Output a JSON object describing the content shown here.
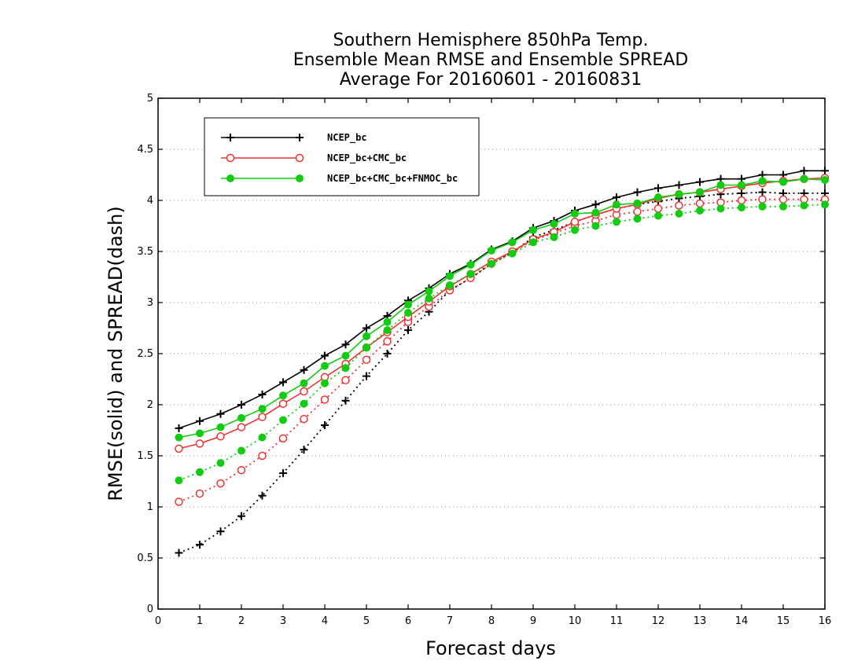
{
  "chart_data": {
    "type": "line",
    "title": [
      "Southern Hemisphere 850hPa Temp.",
      "Ensemble Mean RMSE and Ensemble SPREAD",
      "Average For 20160601 - 20160831"
    ],
    "xlabel": "Forecast days",
    "ylabel": "RMSE(solid) and SPREAD(dash)",
    "xlim": [
      0,
      16
    ],
    "ylim": [
      0,
      5
    ],
    "xticks": [
      0,
      1,
      2,
      3,
      4,
      5,
      6,
      7,
      8,
      9,
      10,
      11,
      12,
      13,
      14,
      15,
      16
    ],
    "yticks": [
      0,
      0.5,
      1,
      1.5,
      2,
      2.5,
      3,
      3.5,
      4,
      4.5,
      5
    ],
    "ytick_labels": [
      "0",
      "0.5",
      "1",
      "1.5",
      "2",
      "2.5",
      "3",
      "3.5",
      "4",
      "4.5",
      "5"
    ],
    "grid": "horizontal dotted",
    "legend_position": "top-left",
    "x": [
      0.5,
      1,
      1.5,
      2,
      2.5,
      3,
      3.5,
      4,
      4.5,
      5,
      5.5,
      6,
      6.5,
      7,
      7.5,
      8,
      8.5,
      9,
      9.5,
      10,
      10.5,
      11,
      11.5,
      12,
      12.5,
      13,
      13.5,
      14,
      14.5,
      15,
      15.5,
      16
    ],
    "series": [
      {
        "name": "NCEP_bc",
        "color": "#000000",
        "marker": "plus",
        "rmse": [
          1.77,
          1.84,
          1.91,
          2.0,
          2.1,
          2.22,
          2.34,
          2.48,
          2.59,
          2.75,
          2.87,
          3.02,
          3.14,
          3.28,
          3.38,
          3.52,
          3.6,
          3.73,
          3.8,
          3.9,
          3.96,
          4.03,
          4.08,
          4.12,
          4.15,
          4.18,
          4.21,
          4.21,
          4.25,
          4.25,
          4.29,
          4.29
        ],
        "spread": [
          0.55,
          0.63,
          0.76,
          0.91,
          1.11,
          1.33,
          1.56,
          1.8,
          2.04,
          2.28,
          2.5,
          2.73,
          2.91,
          3.12,
          3.24,
          3.38,
          3.49,
          3.64,
          3.71,
          3.79,
          3.86,
          3.92,
          3.96,
          3.99,
          4.02,
          4.04,
          4.06,
          4.07,
          4.08,
          4.07,
          4.07,
          4.07
        ]
      },
      {
        "name": "NCEP_bc+CMC_bc",
        "color": "#ee3333",
        "marker": "open-circle",
        "rmse": [
          1.57,
          1.62,
          1.69,
          1.78,
          1.88,
          2.01,
          2.13,
          2.27,
          2.4,
          2.56,
          2.71,
          2.86,
          3.01,
          3.16,
          3.28,
          3.4,
          3.5,
          3.62,
          3.69,
          3.79,
          3.86,
          3.92,
          3.96,
          4.02,
          4.06,
          4.08,
          4.11,
          4.14,
          4.17,
          4.19,
          4.21,
          4.22
        ],
        "spread": [
          1.05,
          1.13,
          1.23,
          1.36,
          1.5,
          1.67,
          1.86,
          2.05,
          2.24,
          2.44,
          2.62,
          2.81,
          2.96,
          3.12,
          3.24,
          3.38,
          3.49,
          3.61,
          3.68,
          3.75,
          3.8,
          3.86,
          3.89,
          3.92,
          3.95,
          3.97,
          3.98,
          4.0,
          4.01,
          4.01,
          4.01,
          4.01
        ]
      },
      {
        "name": "NCEP_bc+CMC_bc+FNMOC_bc",
        "color": "#11cc11",
        "marker": "filled-circle",
        "rmse": [
          1.68,
          1.72,
          1.78,
          1.87,
          1.96,
          2.09,
          2.21,
          2.38,
          2.48,
          2.67,
          2.81,
          2.98,
          3.11,
          3.26,
          3.37,
          3.51,
          3.59,
          3.71,
          3.77,
          3.87,
          3.88,
          3.96,
          3.97,
          4.03,
          4.06,
          4.08,
          4.15,
          4.15,
          4.19,
          4.18,
          4.21,
          4.2
        ],
        "spread": [
          1.26,
          1.34,
          1.43,
          1.55,
          1.68,
          1.85,
          2.01,
          2.21,
          2.36,
          2.56,
          2.73,
          2.9,
          3.04,
          3.17,
          3.28,
          3.38,
          3.48,
          3.59,
          3.64,
          3.71,
          3.75,
          3.79,
          3.82,
          3.85,
          3.87,
          3.9,
          3.92,
          3.93,
          3.94,
          3.94,
          3.95,
          3.96
        ]
      }
    ]
  }
}
